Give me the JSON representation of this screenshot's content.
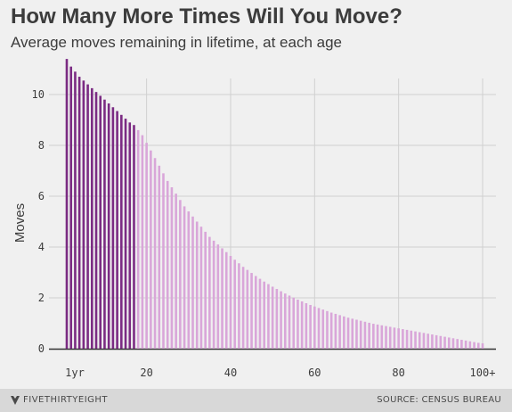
{
  "header": {
    "title": "How Many More Times Will You Move?",
    "subtitle": "Average moves remaining in lifetime, at each age"
  },
  "footer": {
    "brand": "FIVETHIRTYEIGHT",
    "source": "SOURCE: CENSUS BUREAU"
  },
  "colors": {
    "highlight": "#7b2b83",
    "base": "#d9a6d9",
    "grid": "#d0d0d0",
    "baseline": "#333333",
    "background": "#f0f0f0"
  },
  "chart_data": {
    "type": "bar",
    "title": "How Many More Times Will You Move?",
    "subtitle": "Average moves remaining in lifetime, at each age",
    "ylabel": "Moves",
    "xlabel": "",
    "ylim": [
      0,
      11.5
    ],
    "xlim": [
      1,
      100
    ],
    "yticks": [
      0,
      2,
      4,
      6,
      8,
      10
    ],
    "xticks": [
      {
        "value": 1,
        "label": "1yr"
      },
      {
        "value": 20,
        "label": "20"
      },
      {
        "value": 40,
        "label": "40"
      },
      {
        "value": 60,
        "label": "60"
      },
      {
        "value": 80,
        "label": "80"
      },
      {
        "value": 100,
        "label": "100+"
      }
    ],
    "grid": true,
    "highlight_through_age": 17,
    "ages": [
      1,
      2,
      3,
      4,
      5,
      6,
      7,
      8,
      9,
      10,
      11,
      12,
      13,
      14,
      15,
      16,
      17,
      18,
      19,
      20,
      21,
      22,
      23,
      24,
      25,
      26,
      27,
      28,
      29,
      30,
      31,
      32,
      33,
      34,
      35,
      36,
      37,
      38,
      39,
      40,
      41,
      42,
      43,
      44,
      45,
      46,
      47,
      48,
      49,
      50,
      51,
      52,
      53,
      54,
      55,
      56,
      57,
      58,
      59,
      60,
      61,
      62,
      63,
      64,
      65,
      66,
      67,
      68,
      69,
      70,
      71,
      72,
      73,
      74,
      75,
      76,
      77,
      78,
      79,
      80,
      81,
      82,
      83,
      84,
      85,
      86,
      87,
      88,
      89,
      90,
      91,
      92,
      93,
      94,
      95,
      96,
      97,
      98,
      99,
      100
    ],
    "values": [
      11.4,
      11.1,
      10.9,
      10.7,
      10.55,
      10.4,
      10.25,
      10.1,
      9.95,
      9.8,
      9.65,
      9.5,
      9.35,
      9.2,
      9.05,
      8.9,
      8.8,
      8.6,
      8.4,
      8.1,
      7.8,
      7.5,
      7.2,
      6.9,
      6.6,
      6.35,
      6.1,
      5.85,
      5.6,
      5.4,
      5.2,
      5.0,
      4.8,
      4.6,
      4.4,
      4.25,
      4.1,
      3.95,
      3.8,
      3.65,
      3.5,
      3.36,
      3.22,
      3.1,
      2.98,
      2.86,
      2.75,
      2.64,
      2.54,
      2.44,
      2.35,
      2.26,
      2.17,
      2.09,
      2.01,
      1.93,
      1.86,
      1.79,
      1.72,
      1.66,
      1.6,
      1.54,
      1.48,
      1.42,
      1.37,
      1.32,
      1.27,
      1.22,
      1.18,
      1.14,
      1.1,
      1.06,
      1.02,
      0.98,
      0.95,
      0.92,
      0.89,
      0.86,
      0.83,
      0.8,
      0.77,
      0.74,
      0.71,
      0.68,
      0.65,
      0.62,
      0.59,
      0.56,
      0.53,
      0.5,
      0.47,
      0.44,
      0.41,
      0.38,
      0.35,
      0.32,
      0.29,
      0.26,
      0.23,
      0.21
    ]
  }
}
